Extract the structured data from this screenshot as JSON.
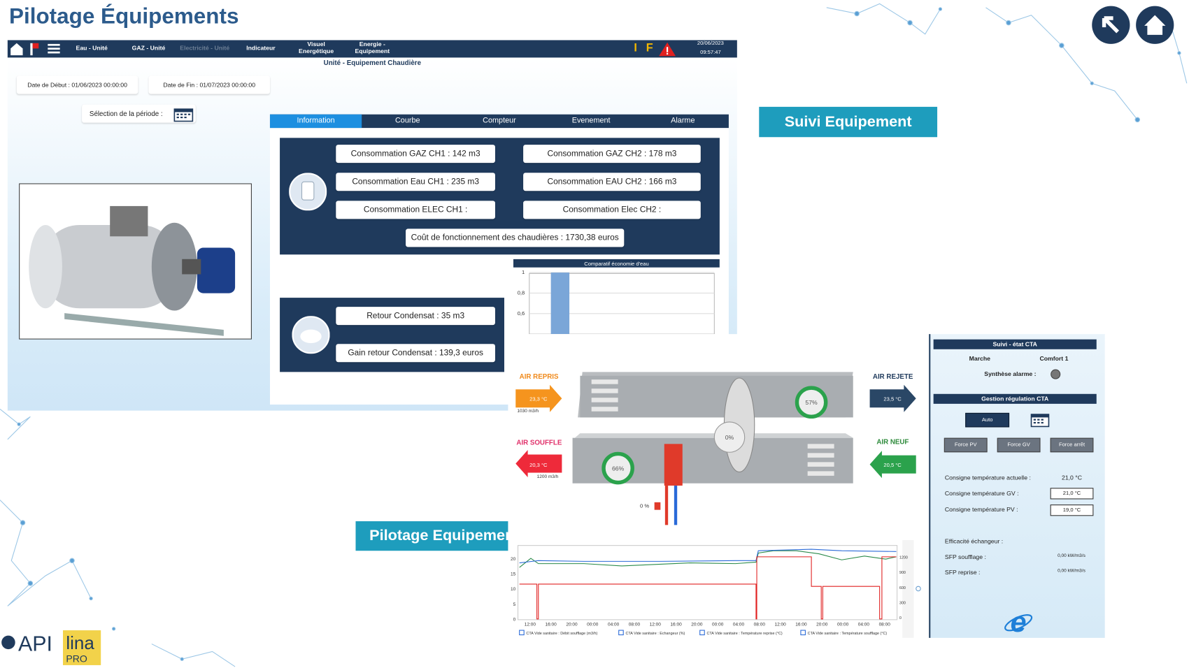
{
  "title": "Pilotage Équipements",
  "nav": {
    "items": [
      "Eau - Unité",
      "GAZ - Unité",
      "Electricité - Unité",
      "Indicateur",
      "Visuel Energétique",
      "Energie - Equipement"
    ],
    "flags": [
      "I",
      "F"
    ],
    "date": "20/06/2023",
    "time": "09:57:47"
  },
  "subtitle": "Unité - Equipement Chaudière",
  "filters": {
    "start": "Date de Début : 01/06/2023 00:00:00",
    "end": "Date de Fin : 01/07/2023 00:00:00",
    "period": "Sélection de la période :"
  },
  "tabs": [
    "Information",
    "Courbe",
    "Compteur",
    "Evenement",
    "Alarme"
  ],
  "consumption": [
    "Consommation GAZ CH1 : 142 m3",
    "Consommation GAZ CH2 : 178 m3",
    "Consommation Eau CH1 : 235 m3",
    "Consommation EAU CH2 : 166 m3",
    "Consommation ELEC CH1 :",
    "Consommation Elec CH2 :"
  ],
  "cost": "Coût de fonctionnement des chaudières : 1730,38 euros",
  "condensate": [
    "Retour Condensat : 35 m3",
    "Gain retour Condensat : 139,3 euros"
  ],
  "chart_data": {
    "type": "bar",
    "title": "Comparatif économie d'eau",
    "categories": [
      null
    ],
    "values": [
      1
    ],
    "color": "#7aa6d8",
    "ylim": [
      0.4,
      1.05
    ],
    "yticks": [
      1,
      {
        "value": 0.8,
        "label": "0,8"
      },
      {
        "value": 0.6,
        "label": "0,6"
      }
    ],
    "grid": true
  },
  "buttons": {
    "suivi": "Suivi Equipement",
    "pilotage": "Pilotage Equipement"
  },
  "cta": {
    "air_repris": "AIR REPRIS",
    "repris_temp": "23,3 °C",
    "repris_flow": "1030 m3/h",
    "air_rejete": "AIR REJETE",
    "rejete_temp": "23,5 °C",
    "air_souffle": "AIR SOUFFLE",
    "souffle_temp": "20,3 °C",
    "souffle_flow": "1200 m3/h",
    "air_neuf": "AIR NEUF",
    "neuf_temp": "20,5 °C",
    "fan_extract": "57%",
    "fan_supply": "66%",
    "wheel": "0%",
    "valve": "0 %"
  },
  "panel": {
    "title": "Suivi - état CTA",
    "state": "Marche",
    "mode": "Comfort 1",
    "alarm": "Synthèse alarme :",
    "section": "Gestion régulation CTA",
    "auto": "Auto",
    "force": [
      "Force PV",
      "Force GV",
      "Force arrêt"
    ],
    "setpoints": [
      [
        "Consigne température actuelle :",
        "21,0 °C"
      ],
      [
        "Consigne température GV :",
        "21,0 °C"
      ],
      [
        "Consigne température PV :",
        "19,0 °C"
      ]
    ],
    "efficiency": "Efficacité échangeur :",
    "sfp": [
      [
        "SFP soufflage :",
        "0,00 kW/m3/s"
      ],
      [
        "SFP reprise :",
        "0,00 kW/m3/s"
      ]
    ]
  },
  "trend": {
    "yticks": [
      "20",
      "15",
      "10",
      "5",
      "0"
    ],
    "y2ticks": [
      "1200",
      "900",
      "600",
      "300",
      "0"
    ],
    "xticks": [
      "12:00",
      "16:00",
      "20:00",
      "00:00",
      "04:00",
      "08:00",
      "12:00",
      "16:00",
      "20:00",
      "00:00",
      "04:00",
      "08:00",
      "12:00",
      "16:00",
      "20:00",
      "00:00",
      "04:00",
      "08:00"
    ],
    "legend": [
      "CTA Vide sanitaire : Débit soufflage (m3/h)",
      "CTA Vide sanitaire : Echangeur (%)",
      "CTA Vide sanitaire : Température reprise (°C)",
      "CTA Vide sanitaire : Température soufflage (°C)"
    ]
  },
  "logos": {
    "api": "API",
    "lina": "lina",
    "pro": "PRO"
  }
}
